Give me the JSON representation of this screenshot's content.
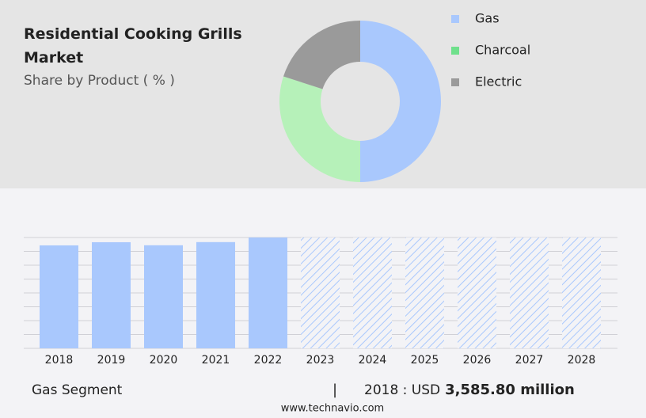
{
  "chart_data": [
    {
      "type": "pie",
      "donut": true,
      "title": "Residential Cooking Grills Market",
      "subtitle": "Share by Product ( % )",
      "categories": [
        "Gas",
        "Charcoal",
        "Electric"
      ],
      "values": [
        50,
        30,
        20
      ],
      "colors": [
        "#a9c8fd",
        "#b6f1b9",
        "#9a9a9a"
      ],
      "legend_colors": [
        "#a9c8fd",
        "#6fe08c",
        "#9a9a9a"
      ]
    },
    {
      "type": "bar",
      "categories": [
        "2018",
        "2019",
        "2020",
        "2021",
        "2022",
        "2023",
        "2024",
        "2025",
        "2026",
        "2027",
        "2028"
      ],
      "values": [
        3585.8,
        3696,
        3590,
        3700,
        3860,
        null,
        null,
        null,
        null,
        null,
        null
      ],
      "color": "#a9c8fd",
      "ylim": [
        0,
        3860
      ],
      "segment": "Gas Segment",
      "separator": "|",
      "period_label": "2018 : USD",
      "value_label": "3,585.80 million"
    }
  ],
  "source": "www.technavio.com"
}
